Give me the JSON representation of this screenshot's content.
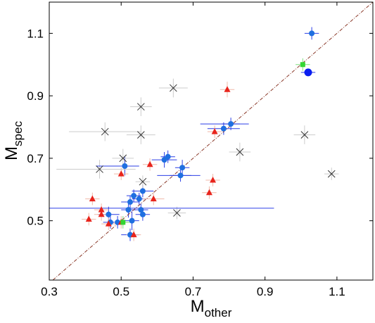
{
  "chart_data": {
    "type": "scatter",
    "title": "",
    "xlabel": "M",
    "xlabel_sub": "other",
    "ylabel": "M",
    "ylabel_sub": "spec",
    "xlim": [
      0.3,
      1.2
    ],
    "ylim": [
      0.31,
      1.2
    ],
    "xticks": [
      0.3,
      0.5,
      0.7,
      0.9,
      1.1
    ],
    "xtick_labels": [
      "0.3",
      "0.5",
      "0.7",
      "0.9",
      "1.1"
    ],
    "yticks": [
      0.5,
      0.7,
      0.9,
      1.1
    ],
    "ytick_labels": [
      "0.5",
      "0.7",
      "0.9",
      "1.1"
    ],
    "grid": false,
    "reference_line": {
      "style": "dash-dot",
      "color": "#8b3a2a",
      "slope": 1,
      "intercept": 0
    },
    "colors": {
      "blue": "#1f6fe0",
      "blue_dark": "#0a1ef0",
      "red": "#e8241c",
      "green": "#33d633",
      "cross": "#333333",
      "err_blue": "#2b3fe6",
      "err_red": "#f0b8a8",
      "err_gray": "#cccccc",
      "err_green": "#80e080"
    },
    "series": [
      {
        "marker": "circle",
        "color": "blue",
        "points": [
          {
            "x": 1.03,
            "y": 1.1,
            "xerr": 0.02,
            "yerr": 0.02
          },
          {
            "x": 0.785,
            "y": 0.795,
            "xerr": 0.045,
            "yerr": 0.02
          },
          {
            "x": 0.805,
            "y": 0.81,
            "xerr": 0.025,
            "yerr": 0.02
          },
          {
            "x": 0.62,
            "y": 0.695,
            "xerr": 0.035,
            "yerr": 0.025
          },
          {
            "x": 0.63,
            "y": 0.705,
            "xerr": 0.02,
            "yerr": 0.02
          },
          {
            "x": 0.67,
            "y": 0.67,
            "xerr": 0.02,
            "yerr": 0.025
          },
          {
            "x": 0.665,
            "y": 0.645,
            "xerr": 0.03,
            "yerr": 0.02
          },
          {
            "x": 0.51,
            "y": 0.675,
            "xerr": 0.03,
            "yerr": 0.03
          },
          {
            "x": 0.56,
            "y": 0.595,
            "xerr": 0.03,
            "yerr": 0.02
          },
          {
            "x": 0.535,
            "y": 0.58,
            "xerr": 0.02,
            "yerr": 0.02
          },
          {
            "x": 0.525,
            "y": 0.56,
            "xerr": 0.025,
            "yerr": 0.02
          },
          {
            "x": 0.55,
            "y": 0.57,
            "xerr": 0.02,
            "yerr": 0.02
          },
          {
            "x": 0.52,
            "y": 0.535,
            "xerr": 0.02,
            "yerr": 0.025
          },
          {
            "x": 0.555,
            "y": 0.535,
            "xerr": 0.02,
            "yerr": 0.02
          },
          {
            "x": 0.56,
            "y": 0.52,
            "xerr": 0.02,
            "yerr": 0.02
          },
          {
            "x": 0.465,
            "y": 0.52,
            "xerr": 0.03,
            "yerr": 0.025
          },
          {
            "x": 0.47,
            "y": 0.495,
            "xerr": 0.02,
            "yerr": 0.02
          },
          {
            "x": 0.49,
            "y": 0.495,
            "xerr": 0.02,
            "yerr": 0.02
          },
          {
            "x": 0.53,
            "y": 0.5,
            "xerr": 0.02,
            "yerr": 0.03
          },
          {
            "x": 0.525,
            "y": 0.455,
            "xerr": 0.025,
            "yerr": 0.02
          }
        ]
      },
      {
        "marker": "circle-large",
        "color": "blue_dark",
        "points": [
          {
            "x": 1.02,
            "y": 0.975,
            "xerr": 0.02,
            "yerr": 0.0
          }
        ]
      },
      {
        "marker": "triangle",
        "color": "red",
        "points": [
          {
            "x": 0.795,
            "y": 0.92,
            "xerr": 0.02,
            "yerr": 0.025
          },
          {
            "x": 0.76,
            "y": 0.785,
            "xerr": 0.02,
            "yerr": 0.02
          },
          {
            "x": 0.5,
            "y": 0.65,
            "xerr": 0.02,
            "yerr": 0.02
          },
          {
            "x": 0.58,
            "y": 0.68,
            "xerr": 0.02,
            "yerr": 0.02
          },
          {
            "x": 0.755,
            "y": 0.63,
            "xerr": 0.02,
            "yerr": 0.02
          },
          {
            "x": 0.745,
            "y": 0.59,
            "xerr": 0.02,
            "yerr": 0.02
          },
          {
            "x": 0.59,
            "y": 0.57,
            "xerr": 0.03,
            "yerr": 0.02
          },
          {
            "x": 0.42,
            "y": 0.57,
            "xerr": 0.02,
            "yerr": 0.02
          },
          {
            "x": 0.445,
            "y": 0.535,
            "xerr": 0.02,
            "yerr": 0.02
          },
          {
            "x": 0.445,
            "y": 0.52,
            "xerr": 0.02,
            "yerr": 0.02
          },
          {
            "x": 0.41,
            "y": 0.505,
            "xerr": 0.02,
            "yerr": 0.02
          },
          {
            "x": 0.465,
            "y": 0.49,
            "xerr": 0.02,
            "yerr": 0.02
          },
          {
            "x": 0.5,
            "y": 0.495,
            "xerr": 0.02,
            "yerr": 0.02
          },
          {
            "x": 0.535,
            "y": 0.455,
            "xerr": 0.02,
            "yerr": 0.02
          }
        ]
      },
      {
        "marker": "square",
        "color": "green",
        "points": [
          {
            "x": 1.005,
            "y": 1.0,
            "xerr": 0.02,
            "yerr": 0.02
          },
          {
            "x": 0.505,
            "y": 0.495,
            "xerr": 0.02,
            "yerr": 0.02
          }
        ]
      },
      {
        "marker": "cross",
        "color": "cross",
        "points": [
          {
            "x": 0.645,
            "y": 0.925,
            "xerr": 0.04,
            "yerr": 0.03
          },
          {
            "x": 0.555,
            "y": 0.865,
            "xerr": 0.03,
            "yerr": 0.03
          },
          {
            "x": 0.455,
            "y": 0.785,
            "xerr": 0.1,
            "yerr": 0.03
          },
          {
            "x": 0.555,
            "y": 0.775,
            "xerr": 0.04,
            "yerr": 0.03
          },
          {
            "x": 1.01,
            "y": 0.775,
            "xerr": 0.03,
            "yerr": 0.03
          },
          {
            "x": 0.83,
            "y": 0.72,
            "xerr": 0.03,
            "yerr": 0.03
          },
          {
            "x": 0.505,
            "y": 0.7,
            "xerr": 0.03,
            "yerr": 0.03
          },
          {
            "x": 0.44,
            "y": 0.665,
            "xerr": 0.1,
            "yerr": 0.03
          },
          {
            "x": 0.56,
            "y": 0.625,
            "xerr": 0.02,
            "yerr": 0.02
          },
          {
            "x": 1.085,
            "y": 0.65,
            "xerr": 0.02,
            "yerr": 0.02
          },
          {
            "x": 0.655,
            "y": 0.525,
            "xerr": 0.025,
            "yerr": 0.02
          }
        ]
      }
    ],
    "wide_errorbars": [
      {
        "y": 0.54,
        "x0": 0.3,
        "x1": 0.925,
        "color": "err_blue"
      },
      {
        "y": 0.675,
        "x0": 0.43,
        "x1": 0.55,
        "color": "err_blue"
      },
      {
        "y": 0.645,
        "x0": 0.6,
        "x1": 0.72,
        "color": "err_blue"
      },
      {
        "y": 0.81,
        "x0": 0.72,
        "x1": 0.855,
        "color": "err_blue"
      },
      {
        "y": 0.665,
        "x0": 0.32,
        "x1": 0.5,
        "color": "err_gray"
      }
    ]
  }
}
